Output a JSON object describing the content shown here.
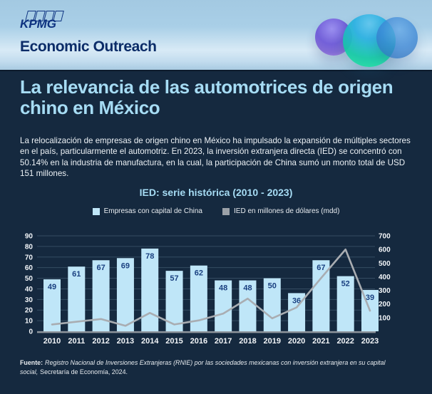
{
  "header": {
    "logo": "KPMG",
    "program": "Economic Outreach"
  },
  "title": "La relevancia de las automotrices de origen chino en México",
  "intro": "La relocalización de empresas de origen chino en México ha impulsado la expansión de múltiples sectores en el país, particularmente el automotriz. En 2023, la inversión extranjera directa (IED) se concentró con 50.14% en la industria de manufactura, en la cual, la participación de China sumó un monto total de USD 151 millones.",
  "chart_data": {
    "type": "bar",
    "subtype": "bar-line-combo",
    "title": "IED: serie histórica (2010 - 2023)",
    "categories": [
      "2010",
      "2011",
      "2012",
      "2013",
      "2014",
      "2015",
      "2016",
      "2017",
      "2018",
      "2019",
      "2020",
      "2021",
      "2022",
      "2023"
    ],
    "series": [
      {
        "name": "Empresas con capital de China",
        "type": "bar",
        "axis": "left",
        "color": "#BFE6F8",
        "values": [
          49,
          61,
          67,
          69,
          78,
          57,
          62,
          48,
          48,
          50,
          36,
          67,
          52,
          39
        ]
      },
      {
        "name": "IED en millones de dólares (mdd)",
        "type": "line",
        "axis": "right",
        "color": "#A9ADB2",
        "values": [
          50,
          70,
          90,
          40,
          135,
          50,
          80,
          130,
          240,
          95,
          175,
          390,
          600,
          151
        ]
      }
    ],
    "left_axis": {
      "min": 0,
      "max": 90,
      "step": 10
    },
    "right_axis": {
      "min": 0,
      "max": 700,
      "step": 100,
      "first_label": 100
    },
    "grid": true,
    "legend_position": "top-center"
  },
  "footer": {
    "label": "Fuente:",
    "source_italic": "Registro Nacional de Inversiones Extranjeras (RNIE) por las sociedades mexicanas con inversión extranjera en su capital social,",
    "source_regular": "Secretaría de Economía, 2024."
  },
  "colors": {
    "body_bg": "#15293F",
    "title_blue": "#A6DCF4",
    "bar_fill": "#BFE6F8",
    "bar_label": "#1A4080",
    "line_gray": "#A9ADB2",
    "legend_gray": "#9BA1A8",
    "axis_gray": "#8F959C",
    "kpmg_blue": "#0E3380"
  }
}
